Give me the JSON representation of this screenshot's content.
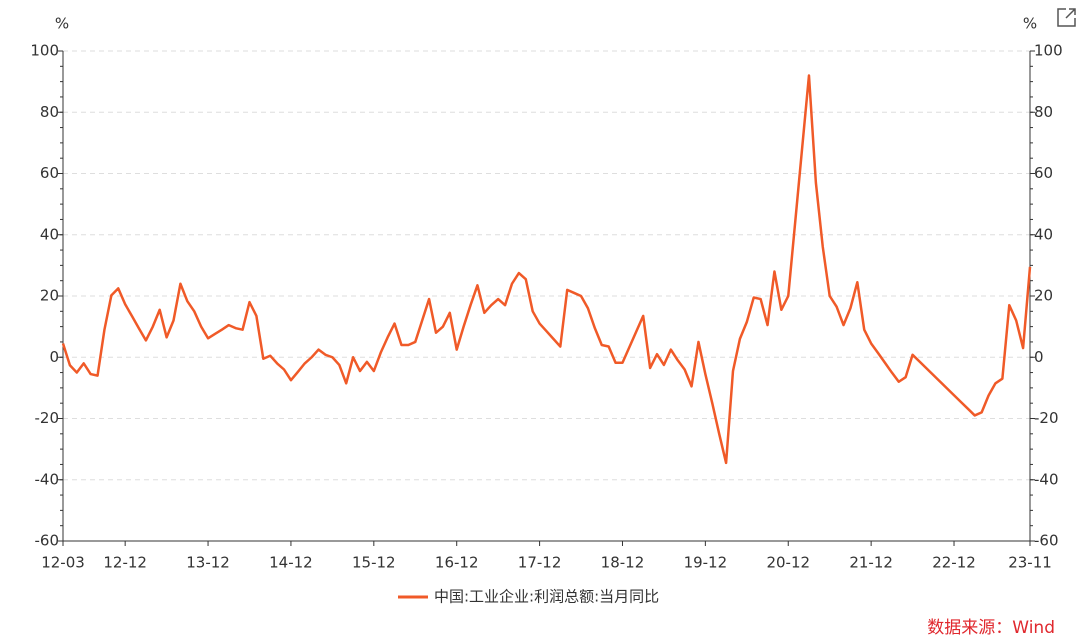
{
  "chart_data": {
    "type": "line",
    "y_unit": "%",
    "y2_unit": "%",
    "source": "数据来源：Wind",
    "categories": [
      "12-03",
      null,
      null,
      null,
      null,
      null,
      null,
      null,
      null,
      "12-12",
      null,
      null,
      null,
      null,
      null,
      null,
      null,
      null,
      null,
      null,
      null,
      "13-12",
      null,
      null,
      null,
      null,
      null,
      null,
      null,
      null,
      null,
      null,
      null,
      "14-12",
      null,
      null,
      null,
      null,
      null,
      null,
      null,
      null,
      null,
      null,
      null,
      "15-12",
      null,
      null,
      null,
      null,
      null,
      null,
      null,
      null,
      null,
      null,
      null,
      "16-12",
      null,
      null,
      null,
      null,
      null,
      null,
      null,
      null,
      null,
      null,
      null,
      "17-12",
      null,
      null,
      null,
      null,
      null,
      null,
      null,
      null,
      null,
      null,
      null,
      "18-12",
      null,
      null,
      null,
      null,
      null,
      null,
      null,
      null,
      null,
      null,
      null,
      "19-12",
      null,
      null,
      null,
      null,
      null,
      null,
      null,
      null,
      null,
      null,
      null,
      "20-12",
      null,
      null,
      null,
      null,
      null,
      null,
      null,
      null,
      null,
      null,
      null,
      "21-12",
      null,
      null,
      null,
      null,
      null,
      null,
      null,
      null,
      null,
      null,
      null,
      "22-12",
      null,
      null,
      null,
      null,
      null,
      null,
      null,
      null,
      null,
      null,
      "23-11"
    ],
    "series": [
      {
        "name": "中国:工业企业:利润总额:当月同比",
        "color": "#f05a28",
        "values": [
          4.5,
          -2.6,
          -5,
          -2,
          -5.5,
          -6,
          9,
          20.2,
          22.5,
          17.3,
          13.4,
          9.4,
          5.5,
          10,
          15.5,
          6.5,
          12,
          24,
          18.3,
          15,
          10,
          6.2,
          7.6,
          9,
          10.5,
          9.5,
          9,
          18,
          13.5,
          -0.5,
          0.5,
          -2,
          -4,
          -7.5,
          -4.8,
          -2,
          0,
          2.5,
          0.8,
          0,
          -2.5,
          -8.5,
          0,
          -4.5,
          -1.5,
          -4.5,
          1.5,
          6.5,
          11,
          4,
          4,
          5,
          12,
          19,
          8,
          10,
          14.5,
          2.5,
          10,
          17,
          23.5,
          14.5,
          17,
          19,
          17,
          24,
          27.5,
          25.5,
          15,
          11,
          8.5,
          6,
          3.5,
          22,
          21,
          20,
          16,
          9.5,
          4,
          3.5,
          -1.8,
          -1.8,
          3.3,
          8.4,
          13.5,
          -3.5,
          1,
          -2.5,
          2.5,
          -1,
          -4,
          -9.5,
          5,
          -5.5,
          -15,
          -25,
          -34.5,
          -4.5,
          6,
          11.5,
          19.5,
          19,
          10.5,
          28,
          15.5,
          20,
          44,
          68,
          92,
          57,
          36,
          20,
          16.5,
          10.5,
          16,
          24.5,
          9,
          4.5,
          1.4,
          -1.8,
          -5,
          -8,
          -6.5,
          0.8,
          -1.4,
          -3.6,
          -5.8,
          -8,
          -10.2,
          -12.4,
          -14.6,
          -16.8,
          -19,
          -18,
          -12.5,
          -8.5,
          -7,
          17,
          12,
          3,
          29.5
        ]
      }
    ],
    "ylim": [
      -60,
      100
    ],
    "yticks": [
      -60,
      -40,
      -20,
      0,
      20,
      40,
      60,
      80,
      100
    ],
    "y2lim": [
      -60,
      100
    ],
    "y2ticks": [
      -60,
      -40,
      -20,
      0,
      20,
      40,
      60,
      80,
      100
    ],
    "grid": true
  }
}
